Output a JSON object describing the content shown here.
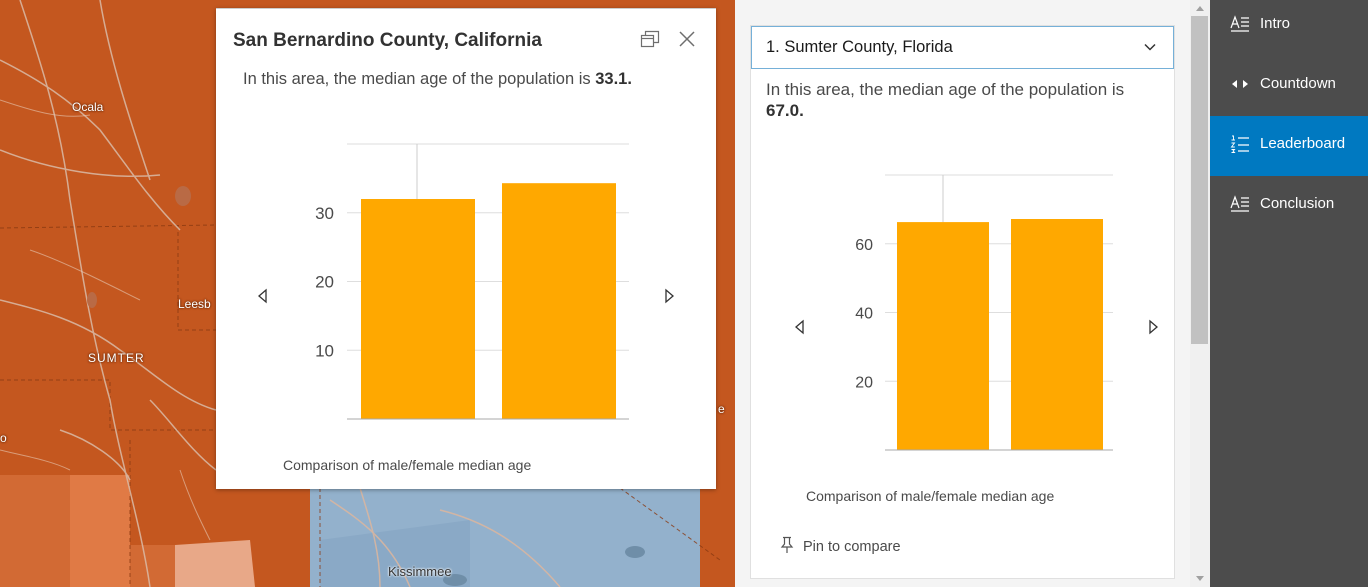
{
  "map": {
    "labels": {
      "ocala": "Ocala",
      "leesburg": "Leesb",
      "sumter": "SUMTER",
      "kissimmee": "Kissimmee",
      "edge_e": "e",
      "edge_o": "o"
    }
  },
  "popup": {
    "title": "San Bernardino County, California",
    "desc_prefix": "In this area, the median age of the population is ",
    "desc_value": "33.1.",
    "caption": "Comparison of male/female median age"
  },
  "side": {
    "selected": "1. Sumter County, Florida",
    "desc_prefix": "In this area, the median age of the population is ",
    "desc_value": "67.0.",
    "caption": "Comparison of male/female median age",
    "pin_label": "Pin to compare"
  },
  "nav": {
    "items": [
      {
        "label": "Intro",
        "icon": "text-lines-icon",
        "active": false
      },
      {
        "label": "Countdown",
        "icon": "left-right-arrows-icon",
        "active": false
      },
      {
        "label": "Leaderboard",
        "icon": "numbered-list-icon",
        "active": true
      },
      {
        "label": "Conclusion",
        "icon": "text-lines-icon",
        "active": false
      }
    ]
  },
  "chart_data": [
    {
      "type": "bar",
      "categories": [
        "",
        ""
      ],
      "values": [
        32.0,
        34.3
      ],
      "yticks": [
        10,
        20,
        30
      ],
      "ylim": [
        0,
        40
      ],
      "title": "",
      "xlabel": "Comparison of male/female median age",
      "ylabel": "",
      "grid": true,
      "color": "#ffa800"
    },
    {
      "type": "bar",
      "categories": [
        "",
        ""
      ],
      "values": [
        66.3,
        67.2
      ],
      "yticks": [
        20,
        40,
        60
      ],
      "ylim": [
        0,
        80
      ],
      "title": "",
      "xlabel": "Comparison of male/female median age",
      "ylabel": "",
      "grid": true,
      "color": "#ffa800"
    }
  ]
}
